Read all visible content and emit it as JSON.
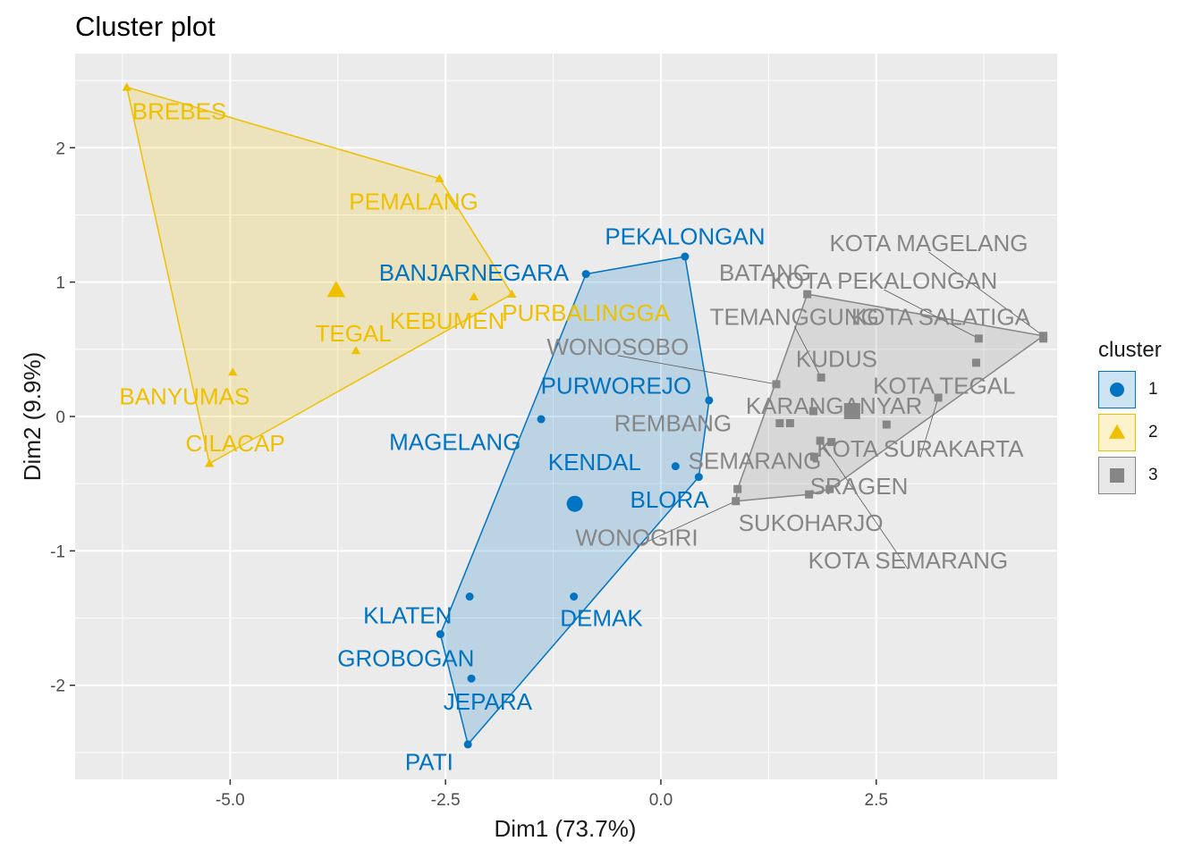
{
  "title": "Cluster plot",
  "chart_data": {
    "type": "scatter",
    "title": "Cluster plot",
    "xlabel": "Dim1 (73.7%)",
    "ylabel": "Dim2 (9.9%)",
    "xlim": [
      -6.8,
      4.6
    ],
    "ylim": [
      -2.7,
      2.7
    ],
    "xticks": [
      -5.0,
      -2.5,
      0.0,
      2.5
    ],
    "xtick_labels": [
      "-5.0",
      "-2.5",
      "0.0",
      "2.5"
    ],
    "yticks": [
      -2,
      -1,
      0,
      1,
      2
    ],
    "ytick_labels": [
      "-2",
      "-1",
      "0",
      "1",
      "2"
    ],
    "grid": true,
    "legend_position": "right",
    "legend_title": "cluster",
    "series": [
      {
        "name": "1",
        "color": "#0073C2",
        "marker": "circle",
        "centroid": [
          -1.0,
          -0.65
        ],
        "hull": [
          [
            -0.87,
            1.06
          ],
          [
            0.28,
            1.19
          ],
          [
            0.56,
            0.12
          ],
          [
            0.44,
            -0.45
          ],
          [
            -2.24,
            -2.44
          ],
          [
            -2.56,
            -1.62
          ]
        ],
        "points": [
          {
            "label": "PEKALONGAN",
            "x": 0.28,
            "y": 1.19,
            "lx": 0.28,
            "ly": 1.34
          },
          {
            "label": "BANJARNEGARA",
            "x": -0.87,
            "y": 1.06,
            "lx": -2.17,
            "ly": 1.07
          },
          {
            "label": "PURWOREJO",
            "x": 0.56,
            "y": 0.12,
            "lx": -0.52,
            "ly": 0.23
          },
          {
            "label": "MAGELANG",
            "x": -1.39,
            "y": -0.02,
            "lx": -2.39,
            "ly": -0.19
          },
          {
            "label": "KENDAL",
            "x": 0.17,
            "y": -0.37,
            "lx": -0.77,
            "ly": -0.34
          },
          {
            "label": "BLORA",
            "x": 0.44,
            "y": -0.45,
            "lx": 0.1,
            "ly": -0.62
          },
          {
            "label": "DEMAK",
            "x": -1.01,
            "y": -1.34,
            "lx": -0.69,
            "ly": -1.5
          },
          {
            "label": "KLATEN",
            "x": -2.22,
            "y": -1.34,
            "lx": -2.94,
            "ly": -1.48
          },
          {
            "label": "GROBOGAN",
            "x": -2.56,
            "y": -1.62,
            "lx": -2.96,
            "ly": -1.8
          },
          {
            "label": "JEPARA",
            "x": -2.2,
            "y": -1.95,
            "lx": -2.01,
            "ly": -2.12
          },
          {
            "label": "PATI",
            "x": -2.24,
            "y": -2.44,
            "lx": -2.69,
            "ly": -2.57
          }
        ]
      },
      {
        "name": "2",
        "color": "#EFC000",
        "marker": "triangle",
        "centroid": [
          -3.77,
          0.94
        ],
        "hull": [
          [
            -6.2,
            2.45
          ],
          [
            -2.57,
            1.77
          ],
          [
            -1.73,
            0.91
          ],
          [
            -5.24,
            -0.35
          ]
        ],
        "points": [
          {
            "label": "BREBES",
            "x": -6.2,
            "y": 2.45,
            "lx": -5.59,
            "ly": 2.27
          },
          {
            "label": "PEMALANG",
            "x": -2.57,
            "y": 1.77,
            "lx": -2.87,
            "ly": 1.6
          },
          {
            "label": "KEBUMEN",
            "x": -2.17,
            "y": 0.89,
            "lx": -2.48,
            "ly": 0.71
          },
          {
            "label": "PURBALINGGA",
            "x": -1.73,
            "y": 0.91,
            "lx": -0.87,
            "ly": 0.77
          },
          {
            "label": "TEGAL",
            "x": -3.54,
            "y": 0.49,
            "lx": -3.57,
            "ly": 0.62
          },
          {
            "label": "BANYUMAS",
            "x": -4.97,
            "y": 0.33,
            "lx": -5.53,
            "ly": 0.15
          },
          {
            "label": "CILACAP",
            "x": -5.24,
            "y": -0.35,
            "lx": -4.94,
            "ly": -0.2
          }
        ]
      },
      {
        "name": "3",
        "color": "#868686",
        "marker": "square",
        "centroid": [
          2.22,
          0.04
        ],
        "hull": [
          [
            1.7,
            0.91
          ],
          [
            4.44,
            0.6
          ],
          [
            1.96,
            -0.54
          ],
          [
            1.72,
            -0.58
          ],
          [
            0.87,
            -0.63
          ],
          [
            0.89,
            -0.54
          ]
        ],
        "points": [
          {
            "label": "KOTA MAGELANG",
            "x": 4.44,
            "y": 0.6,
            "lx": 3.11,
            "ly": 1.29,
            "leader": true
          },
          {
            "label": "KOTA PEKALONGAN",
            "x": 3.69,
            "y": 0.58,
            "lx": 2.59,
            "ly": 1.01,
            "leader": true
          },
          {
            "label": "BATANG",
            "x": 1.7,
            "y": 0.91,
            "lx": 1.21,
            "ly": 1.07
          },
          {
            "label": "KOTA SALATIGA",
            "x": 4.44,
            "y": 0.58,
            "lx": 3.25,
            "ly": 0.74
          },
          {
            "label": "TEMANGGUNG",
            "x": 1.86,
            "y": 0.29,
            "lx": 1.55,
            "ly": 0.74,
            "leader": true
          },
          {
            "label": "WONOSOBO",
            "x": 1.34,
            "y": 0.24,
            "lx": -0.5,
            "ly": 0.52,
            "leader": true
          },
          {
            "label": "KUDUS",
            "x": 1.77,
            "y": 0.04,
            "lx": 2.04,
            "ly": 0.43
          },
          {
            "label": "KOTA TEGAL",
            "x": 3.66,
            "y": 0.4,
            "lx": 3.29,
            "ly": 0.23
          },
          {
            "label": "KOTA SURAKARTA",
            "x": 3.22,
            "y": 0.14,
            "lx": 3.01,
            "ly": -0.24,
            "leader": true
          },
          {
            "label": "KARANGANYAR",
            "x": 2.62,
            "y": -0.06,
            "lx": 2.01,
            "ly": 0.08
          },
          {
            "label": "REMBANG",
            "x": 1.38,
            "y": -0.05,
            "lx": 0.14,
            "ly": -0.05
          },
          {
            "label": "SEMARANG",
            "x": 1.78,
            "y": -0.3,
            "lx": 1.09,
            "ly": -0.33
          },
          {
            "label": "SRAGEN",
            "x": 1.96,
            "y": -0.54,
            "lx": 2.3,
            "ly": -0.52
          },
          {
            "label": "SUKOHARJO",
            "x": 1.72,
            "y": -0.58,
            "lx": 1.74,
            "ly": -0.79
          },
          {
            "label": "WONOGIRI",
            "x": 0.87,
            "y": -0.63,
            "lx": -0.28,
            "ly": -0.9,
            "leader": true
          },
          {
            "label": "KOTA SEMARANG",
            "x": 1.85,
            "y": -0.18,
            "lx": 2.87,
            "ly": -1.07,
            "leader": true
          },
          {
            "label": "",
            "x": 0.89,
            "y": -0.54
          },
          {
            "label": "",
            "x": 1.5,
            "y": -0.05
          },
          {
            "label": "",
            "x": 1.98,
            "y": -0.19
          }
        ]
      }
    ]
  }
}
